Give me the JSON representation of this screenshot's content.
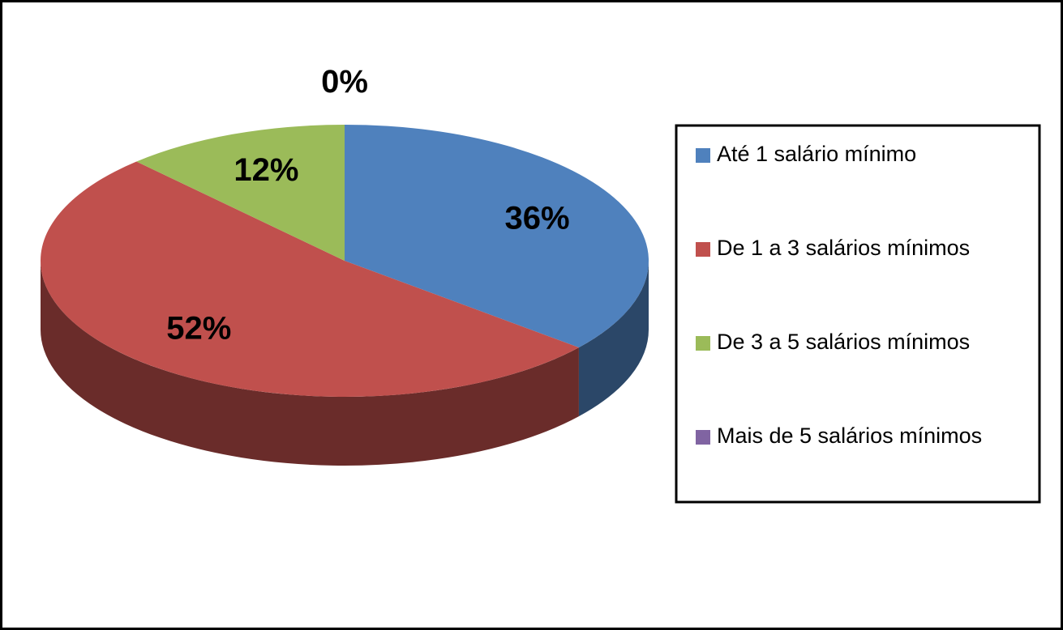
{
  "chart_data": {
    "type": "pie",
    "categories": [
      "Até 1 salário mínimo",
      "De 1 a 3 salários mínimos",
      "De 3 a 5 salários mínimos",
      "Mais de 5 salários mínimos"
    ],
    "values": [
      36,
      52,
      12,
      0
    ],
    "value_labels": [
      "36%",
      "52%",
      "12%",
      "0%"
    ],
    "colors": [
      "#4f81bd",
      "#c0504d",
      "#9bbb59",
      "#8064a2"
    ],
    "legend": "right"
  }
}
